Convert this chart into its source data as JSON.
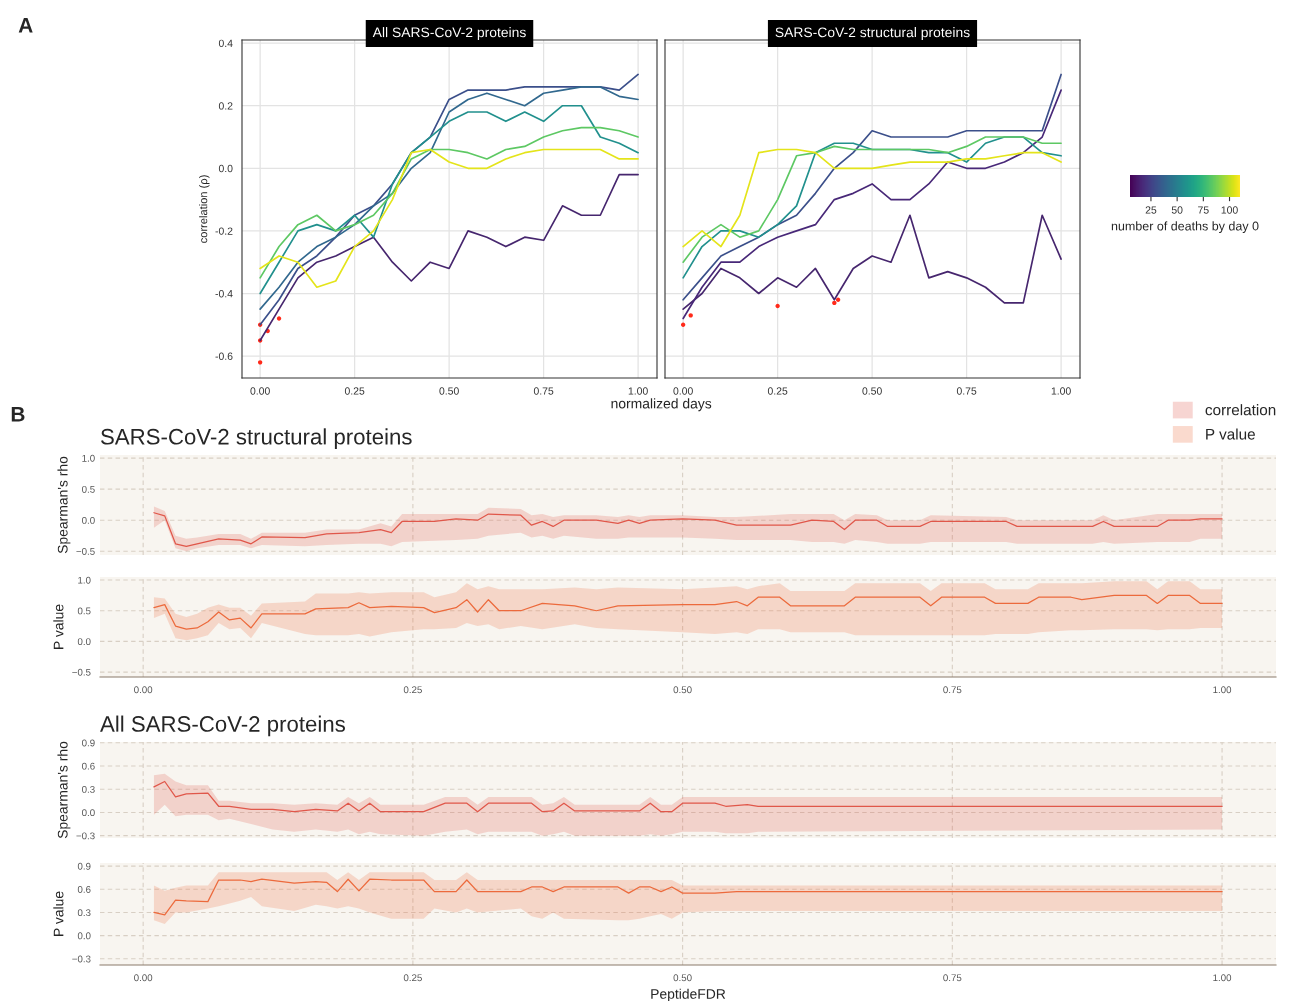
{
  "chart_data": [
    {
      "type": "line",
      "title": "All SARS-CoV-2 proteins",
      "xlabel": "normalized days",
      "ylabel": "correlation (ρ)",
      "annotations": [
        "A"
      ],
      "grid": true,
      "xlim": [
        -0.048,
        1.05
      ],
      "ylim": [
        -0.67,
        0.41
      ],
      "xticks": [
        {
          "value": 0,
          "label": "0.00"
        },
        {
          "value": 0.25,
          "label": "0.25"
        },
        {
          "value": 0.5,
          "label": "0.50"
        },
        {
          "value": 0.75,
          "label": "0.75"
        },
        {
          "value": 1,
          "label": "1.00"
        }
      ],
      "yticks": [
        {
          "value": -0.6,
          "label": "-0.6"
        },
        {
          "value": -0.4,
          "label": "-0.4"
        },
        {
          "value": -0.2,
          "label": "-0.2"
        },
        {
          "value": 0,
          "label": "0.0"
        },
        {
          "value": 0.2,
          "label": "0.2"
        },
        {
          "value": 0.4,
          "label": "0.4"
        }
      ],
      "x": [
        0,
        0.05,
        0.1,
        0.15,
        0.2,
        0.25,
        0.3,
        0.35,
        0.4,
        0.45,
        0.5,
        0.55,
        0.6,
        0.65,
        0.7,
        0.75,
        0.8,
        0.85,
        0.9,
        0.95,
        1.0
      ],
      "series": [
        {
          "color": "#46266e",
          "values": [
            -0.55,
            -0.45,
            -0.35,
            -0.3,
            -0.28,
            -0.25,
            -0.22,
            -0.3,
            -0.36,
            -0.3,
            -0.32,
            -0.2,
            -0.22,
            -0.25,
            -0.22,
            -0.23,
            -0.12,
            -0.15,
            -0.15,
            -0.02,
            -0.02
          ]
        },
        {
          "color": "#3b4f8a",
          "values": [
            -0.5,
            -0.42,
            -0.32,
            -0.28,
            -0.22,
            -0.15,
            -0.12,
            -0.05,
            0.05,
            0.1,
            0.22,
            0.25,
            0.25,
            0.25,
            0.26,
            0.26,
            0.26,
            0.26,
            0.26,
            0.25,
            0.3
          ]
        },
        {
          "color": "#31688e",
          "values": [
            -0.45,
            -0.38,
            -0.3,
            -0.25,
            -0.22,
            -0.18,
            -0.12,
            -0.08,
            0.0,
            0.05,
            0.18,
            0.22,
            0.24,
            0.22,
            0.2,
            0.24,
            0.25,
            0.26,
            0.26,
            0.23,
            0.22
          ]
        },
        {
          "color": "#21908d",
          "values": [
            -0.4,
            -0.3,
            -0.2,
            -0.18,
            -0.2,
            -0.15,
            -0.22,
            -0.05,
            0.05,
            0.1,
            0.15,
            0.18,
            0.18,
            0.15,
            0.18,
            0.15,
            0.2,
            0.2,
            0.1,
            0.08,
            0.05
          ]
        },
        {
          "color": "#5dc863",
          "values": [
            -0.35,
            -0.25,
            -0.18,
            -0.15,
            -0.2,
            -0.18,
            -0.15,
            -0.08,
            0.03,
            0.06,
            0.06,
            0.05,
            0.03,
            0.06,
            0.07,
            0.1,
            0.12,
            0.13,
            0.13,
            0.12,
            0.1
          ]
        },
        {
          "color": "#e4e41a",
          "values": [
            -0.32,
            -0.28,
            -0.3,
            -0.38,
            -0.36,
            -0.25,
            -0.2,
            -0.1,
            0.05,
            0.06,
            0.02,
            0.0,
            0.0,
            0.03,
            0.05,
            0.06,
            0.06,
            0.06,
            0.06,
            0.03,
            0.03
          ]
        },
        {
          "type": "scatter",
          "color": "#ff2a1a",
          "x": [
            0,
            0,
            0,
            0.02,
            0.05
          ],
          "values": [
            -0.55,
            -0.62,
            -0.5,
            -0.52,
            -0.48
          ]
        }
      ]
    },
    {
      "type": "line",
      "title": "SARS-CoV-2 structural proteins",
      "grid": true,
      "tick_labels": "x",
      "clabel": "number of deaths by day 0",
      "clim": [
        5,
        110
      ],
      "cticks": [
        25,
        50,
        75,
        100
      ],
      "xlim": [
        -0.048,
        1.05
      ],
      "ylim": [
        -0.67,
        0.41
      ],
      "xticks": [
        {
          "value": 0,
          "label": "0.00"
        },
        {
          "value": 0.25,
          "label": "0.25"
        },
        {
          "value": 0.5,
          "label": "0.50"
        },
        {
          "value": 0.75,
          "label": "0.75"
        },
        {
          "value": 1,
          "label": "1.00"
        }
      ],
      "yticks": [
        -0.6,
        -0.4,
        -0.2,
        0,
        0.2,
        0.4
      ],
      "x": [
        0,
        0.05,
        0.1,
        0.15,
        0.2,
        0.25,
        0.3,
        0.35,
        0.4,
        0.45,
        0.5,
        0.55,
        0.6,
        0.65,
        0.7,
        0.75,
        0.8,
        0.85,
        0.9,
        0.95,
        1.0
      ],
      "series": [
        {
          "color": "#46266e",
          "values": [
            -0.45,
            -0.4,
            -0.32,
            -0.35,
            -0.4,
            -0.35,
            -0.38,
            -0.32,
            -0.42,
            -0.32,
            -0.28,
            -0.3,
            -0.15,
            -0.35,
            -0.33,
            -0.35,
            -0.38,
            -0.43,
            -0.43,
            -0.15,
            -0.29
          ]
        },
        {
          "color": "#482878",
          "values": [
            -0.48,
            -0.38,
            -0.3,
            -0.3,
            -0.25,
            -0.22,
            -0.2,
            -0.18,
            -0.1,
            -0.08,
            -0.05,
            -0.1,
            -0.1,
            -0.05,
            0.02,
            0.0,
            0.0,
            0.02,
            0.05,
            0.1,
            0.25
          ]
        },
        {
          "color": "#3b4f8a",
          "values": [
            -0.42,
            -0.35,
            -0.28,
            -0.25,
            -0.22,
            -0.18,
            -0.15,
            -0.08,
            0.0,
            0.05,
            0.12,
            0.1,
            0.1,
            0.1,
            0.1,
            0.12,
            0.12,
            0.12,
            0.12,
            0.12,
            0.3
          ]
        },
        {
          "color": "#21908d",
          "values": [
            -0.35,
            -0.25,
            -0.2,
            -0.2,
            -0.22,
            -0.18,
            -0.12,
            0.05,
            0.08,
            0.08,
            0.06,
            0.06,
            0.06,
            0.05,
            0.05,
            0.02,
            0.08,
            0.1,
            0.1,
            0.05,
            0.04
          ]
        },
        {
          "color": "#5dc863",
          "values": [
            -0.3,
            -0.22,
            -0.18,
            -0.22,
            -0.2,
            -0.1,
            0.04,
            0.05,
            0.07,
            0.06,
            0.06,
            0.06,
            0.06,
            0.06,
            0.05,
            0.07,
            0.1,
            0.1,
            0.1,
            0.08,
            0.08
          ]
        },
        {
          "color": "#e4e41a",
          "values": [
            -0.25,
            -0.2,
            -0.25,
            -0.15,
            0.05,
            0.06,
            0.06,
            0.05,
            0.0,
            0.0,
            0.0,
            0.01,
            0.02,
            0.02,
            0.02,
            0.03,
            0.03,
            0.04,
            0.05,
            0.05,
            0.02
          ]
        },
        {
          "type": "scatter",
          "color": "#ff2a1a",
          "x": [
            0,
            0.02,
            0.25,
            0.4,
            0.41
          ],
          "values": [
            -0.5,
            -0.47,
            -0.44,
            -0.43,
            -0.42
          ]
        }
      ]
    },
    {
      "type": "line",
      "title": "SARS-CoV-2 structural proteins",
      "ylabel": "Spearman's rho",
      "annotations": [
        "B"
      ],
      "grid": true,
      "legend": "top right",
      "tick_labels": "y",
      "xlim": [
        -0.04,
        1.05
      ],
      "ylim": [
        -0.56,
        1.05
      ],
      "xticks": [
        0,
        0.25,
        0.5,
        0.75,
        1
      ],
      "yticks": [
        {
          "value": -0.5,
          "label": "−0.5"
        },
        {
          "value": 0,
          "label": "0.0"
        },
        {
          "value": 0.5,
          "label": "0.5"
        },
        {
          "value": 1,
          "label": "1.0"
        }
      ],
      "series": [
        {
          "name": "correlation",
          "color": "#e0574a",
          "x": [
            0.01,
            0.02,
            0.03,
            0.04,
            0.05,
            0.07,
            0.09,
            0.1,
            0.11,
            0.15,
            0.17,
            0.2,
            0.22,
            0.23,
            0.24,
            0.27,
            0.29,
            0.31,
            0.32,
            0.35,
            0.36,
            0.37,
            0.38,
            0.39,
            0.42,
            0.44,
            0.45,
            0.46,
            0.47,
            0.5,
            0.53,
            0.55,
            0.6,
            0.62,
            0.64,
            0.65,
            0.66,
            0.68,
            0.69,
            0.72,
            0.73,
            0.8,
            0.81,
            0.88,
            0.89,
            0.9,
            0.94,
            0.95,
            0.97,
            0.98,
            1.0
          ],
          "values": [
            0.12,
            0.07,
            -0.38,
            -0.42,
            -0.38,
            -0.3,
            -0.32,
            -0.38,
            -0.27,
            -0.28,
            -0.22,
            -0.2,
            -0.15,
            -0.2,
            -0.02,
            -0.02,
            0.02,
            0.0,
            0.1,
            0.08,
            -0.08,
            -0.02,
            -0.1,
            0.0,
            0.0,
            -0.05,
            0.0,
            -0.05,
            0.0,
            0.02,
            0.0,
            -0.08,
            -0.08,
            0.0,
            -0.02,
            -0.15,
            0.0,
            0.0,
            -0.1,
            -0.1,
            -0.02,
            -0.02,
            -0.1,
            -0.1,
            -0.02,
            -0.1,
            -0.1,
            0.0,
            0.0,
            0.02,
            0.02
          ],
          "lower": [
            -0.12,
            0.0,
            -0.45,
            -0.5,
            -0.45,
            -0.4,
            -0.4,
            -0.45,
            -0.4,
            -0.42,
            -0.4,
            -0.38,
            -0.38,
            -0.42,
            -0.35,
            -0.33,
            -0.32,
            -0.3,
            -0.25,
            -0.2,
            -0.28,
            -0.25,
            -0.3,
            -0.25,
            -0.3,
            -0.3,
            -0.28,
            -0.28,
            -0.28,
            -0.28,
            -0.3,
            -0.32,
            -0.32,
            -0.35,
            -0.35,
            -0.38,
            -0.32,
            -0.35,
            -0.38,
            -0.38,
            -0.35,
            -0.35,
            -0.38,
            -0.38,
            -0.35,
            -0.38,
            -0.35,
            -0.35,
            -0.35,
            -0.3,
            -0.3
          ],
          "upper": [
            0.22,
            0.15,
            -0.25,
            -0.3,
            -0.28,
            -0.22,
            -0.22,
            -0.3,
            -0.2,
            -0.2,
            -0.15,
            -0.15,
            -0.05,
            -0.1,
            0.1,
            0.1,
            0.1,
            0.1,
            0.2,
            0.18,
            0.08,
            0.1,
            0.05,
            0.08,
            0.08,
            0.05,
            0.08,
            0.05,
            0.08,
            0.08,
            0.05,
            0.05,
            0.1,
            0.1,
            0.1,
            0.0,
            0.1,
            0.08,
            0.0,
            0.0,
            0.08,
            0.05,
            0.0,
            0.0,
            0.08,
            0.0,
            0.1,
            0.1,
            0.1,
            0.1,
            0.1
          ]
        }
      ]
    },
    {
      "type": "line",
      "ylabel": "P value",
      "grid": true,
      "xlim": [
        -0.04,
        1.05
      ],
      "ylim": [
        -0.58,
        1.05
      ],
      "xticks": [
        {
          "value": 0,
          "label": "0.00"
        },
        {
          "value": 0.25,
          "label": "0.25"
        },
        {
          "value": 0.5,
          "label": "0.50"
        },
        {
          "value": 0.75,
          "label": "0.75"
        },
        {
          "value": 1,
          "label": "1.00"
        }
      ],
      "yticks": [
        {
          "value": -0.5,
          "label": "−0.5"
        },
        {
          "value": 0,
          "label": "0.0"
        },
        {
          "value": 0.5,
          "label": "0.5"
        },
        {
          "value": 1,
          "label": "1.0"
        }
      ],
      "series": [
        {
          "name": "P value",
          "color": "#ec6a3c",
          "x": [
            0.01,
            0.02,
            0.03,
            0.04,
            0.05,
            0.06,
            0.07,
            0.08,
            0.09,
            0.1,
            0.11,
            0.15,
            0.16,
            0.19,
            0.2,
            0.21,
            0.23,
            0.26,
            0.27,
            0.29,
            0.3,
            0.31,
            0.32,
            0.33,
            0.35,
            0.37,
            0.4,
            0.42,
            0.44,
            0.5,
            0.53,
            0.55,
            0.56,
            0.57,
            0.59,
            0.6,
            0.65,
            0.66,
            0.72,
            0.73,
            0.74,
            0.78,
            0.79,
            0.82,
            0.83,
            0.86,
            0.87,
            0.9,
            0.93,
            0.94,
            0.95,
            0.97,
            0.98,
            1.0
          ],
          "values": [
            0.55,
            0.6,
            0.25,
            0.2,
            0.22,
            0.32,
            0.48,
            0.35,
            0.38,
            0.22,
            0.45,
            0.45,
            0.53,
            0.55,
            0.63,
            0.55,
            0.57,
            0.55,
            0.47,
            0.55,
            0.68,
            0.48,
            0.68,
            0.5,
            0.5,
            0.62,
            0.58,
            0.5,
            0.58,
            0.6,
            0.6,
            0.65,
            0.58,
            0.72,
            0.72,
            0.58,
            0.58,
            0.72,
            0.72,
            0.58,
            0.72,
            0.72,
            0.62,
            0.62,
            0.72,
            0.72,
            0.68,
            0.75,
            0.75,
            0.62,
            0.75,
            0.75,
            0.62,
            0.62
          ],
          "lower": [
            0.38,
            0.45,
            0.05,
            0.02,
            0.05,
            0.1,
            0.3,
            0.2,
            0.22,
            0.05,
            0.3,
            0.12,
            0.1,
            0.1,
            0.12,
            0.08,
            0.15,
            0.2,
            0.2,
            0.22,
            0.3,
            0.25,
            0.28,
            0.2,
            0.25,
            0.2,
            0.28,
            0.22,
            0.2,
            0.15,
            0.12,
            0.15,
            0.12,
            0.2,
            0.2,
            0.15,
            0.15,
            0.1,
            0.1,
            0.1,
            0.1,
            0.1,
            0.12,
            0.12,
            0.15,
            0.18,
            0.18,
            0.2,
            0.2,
            0.18,
            0.2,
            0.2,
            0.22,
            0.22
          ],
          "upper": [
            0.72,
            0.7,
            0.45,
            0.4,
            0.45,
            0.55,
            0.6,
            0.55,
            0.55,
            0.42,
            0.62,
            0.65,
            0.78,
            0.78,
            0.8,
            0.78,
            0.8,
            0.8,
            0.72,
            0.8,
            0.95,
            0.85,
            0.9,
            0.85,
            0.85,
            0.85,
            0.88,
            0.85,
            0.88,
            0.85,
            0.88,
            0.9,
            0.85,
            0.9,
            0.95,
            0.82,
            0.82,
            0.95,
            0.95,
            0.82,
            0.95,
            0.95,
            0.85,
            0.85,
            0.95,
            0.95,
            0.95,
            0.98,
            0.98,
            0.85,
            0.98,
            0.98,
            0.85,
            0.85
          ]
        }
      ]
    },
    {
      "type": "line",
      "title": "All SARS-CoV-2 proteins",
      "ylabel": "Spearman's rho",
      "grid": true,
      "tick_labels": "y",
      "xlim": [
        -0.04,
        1.05
      ],
      "ylim": [
        -0.33,
        0.91
      ],
      "xticks": [
        0,
        0.25,
        0.5,
        0.75,
        1
      ],
      "yticks": [
        {
          "value": -0.3,
          "label": "−0.3"
        },
        {
          "value": 0,
          "label": "0.0"
        },
        {
          "value": 0.3,
          "label": "0.3"
        },
        {
          "value": 0.6,
          "label": "0.6"
        },
        {
          "value": 0.9,
          "label": "0.9"
        }
      ],
      "series": [
        {
          "color": "#e0574a",
          "x": [
            0.01,
            0.02,
            0.03,
            0.04,
            0.06,
            0.07,
            0.08,
            0.1,
            0.12,
            0.14,
            0.16,
            0.18,
            0.19,
            0.2,
            0.21,
            0.22,
            0.26,
            0.28,
            0.3,
            0.31,
            0.32,
            0.36,
            0.37,
            0.38,
            0.39,
            0.4,
            0.44,
            0.46,
            0.47,
            0.48,
            0.49,
            0.5,
            0.53,
            0.54,
            0.56,
            0.57,
            1.0
          ],
          "values": [
            0.33,
            0.4,
            0.2,
            0.24,
            0.25,
            0.08,
            0.08,
            0.04,
            0.04,
            0.01,
            0.04,
            0.02,
            0.12,
            0.02,
            0.12,
            0.01,
            0.01,
            0.12,
            0.12,
            0.01,
            0.12,
            0.12,
            0.01,
            0.02,
            0.12,
            0.02,
            0.02,
            0.02,
            0.12,
            0.01,
            0.01,
            0.12,
            0.12,
            0.08,
            0.1,
            0.08,
            0.08
          ],
          "lower": [
            -0.03,
            0.1,
            -0.05,
            -0.03,
            -0.03,
            -0.1,
            -0.08,
            -0.15,
            -0.22,
            -0.25,
            -0.22,
            -0.25,
            -0.22,
            -0.28,
            -0.25,
            -0.28,
            -0.3,
            -0.25,
            -0.22,
            -0.28,
            -0.25,
            -0.25,
            -0.3,
            -0.28,
            -0.25,
            -0.3,
            -0.3,
            -0.3,
            -0.28,
            -0.3,
            -0.28,
            -0.25,
            -0.25,
            -0.27,
            -0.27,
            -0.25,
            -0.22
          ],
          "upper": [
            0.48,
            0.5,
            0.4,
            0.35,
            0.35,
            0.15,
            0.15,
            0.12,
            0.12,
            0.1,
            0.12,
            0.1,
            0.2,
            0.12,
            0.2,
            0.1,
            0.1,
            0.2,
            0.2,
            0.1,
            0.2,
            0.2,
            0.1,
            0.12,
            0.2,
            0.1,
            0.1,
            0.1,
            0.2,
            0.1,
            0.1,
            0.2,
            0.2,
            0.2,
            0.2,
            0.2,
            0.2
          ]
        }
      ]
    },
    {
      "type": "line",
      "ylabel": "P value",
      "xlabel": "PeptideFDR",
      "grid": true,
      "xlim": [
        -0.04,
        1.05
      ],
      "ylim": [
        -0.38,
        0.94
      ],
      "xticks": [
        {
          "value": 0,
          "label": "0.00"
        },
        {
          "value": 0.25,
          "label": "0.25"
        },
        {
          "value": 0.5,
          "label": "0.50"
        },
        {
          "value": 0.75,
          "label": "0.75"
        },
        {
          "value": 1,
          "label": "1.00"
        }
      ],
      "yticks": [
        {
          "value": -0.3,
          "label": "−0.3"
        },
        {
          "value": 0,
          "label": "0.0"
        },
        {
          "value": 0.3,
          "label": "0.3"
        },
        {
          "value": 0.6,
          "label": "0.6"
        },
        {
          "value": 0.9,
          "label": "0.9"
        }
      ],
      "series": [
        {
          "color": "#ec6a3c",
          "x": [
            0.01,
            0.02,
            0.03,
            0.04,
            0.06,
            0.07,
            0.09,
            0.1,
            0.11,
            0.14,
            0.16,
            0.17,
            0.18,
            0.19,
            0.2,
            0.21,
            0.23,
            0.26,
            0.27,
            0.29,
            0.3,
            0.31,
            0.35,
            0.36,
            0.37,
            0.38,
            0.39,
            0.44,
            0.45,
            0.46,
            0.47,
            0.48,
            0.49,
            0.5,
            0.53,
            0.55,
            1.0
          ],
          "values": [
            0.3,
            0.27,
            0.46,
            0.45,
            0.44,
            0.72,
            0.72,
            0.7,
            0.73,
            0.68,
            0.7,
            0.69,
            0.57,
            0.73,
            0.58,
            0.73,
            0.72,
            0.72,
            0.57,
            0.57,
            0.72,
            0.57,
            0.57,
            0.63,
            0.63,
            0.57,
            0.63,
            0.63,
            0.55,
            0.63,
            0.63,
            0.57,
            0.63,
            0.55,
            0.55,
            0.57,
            0.57
          ],
          "lower": [
            0.2,
            0.15,
            0.3,
            0.3,
            0.35,
            0.38,
            0.45,
            0.5,
            0.38,
            0.32,
            0.4,
            0.38,
            0.35,
            0.38,
            0.35,
            0.3,
            0.22,
            0.22,
            0.35,
            0.3,
            0.35,
            0.3,
            0.35,
            0.25,
            0.22,
            0.3,
            0.22,
            0.2,
            0.2,
            0.22,
            0.25,
            0.28,
            0.22,
            0.3,
            0.32,
            0.32,
            0.32
          ],
          "upper": [
            0.65,
            0.58,
            0.62,
            0.65,
            0.65,
            0.82,
            0.82,
            0.82,
            0.82,
            0.82,
            0.82,
            0.82,
            0.72,
            0.82,
            0.72,
            0.82,
            0.82,
            0.82,
            0.72,
            0.72,
            0.82,
            0.72,
            0.72,
            0.72,
            0.72,
            0.72,
            0.72,
            0.72,
            0.72,
            0.72,
            0.72,
            0.72,
            0.72,
            0.65,
            0.65,
            0.65,
            0.65
          ]
        }
      ]
    }
  ]
}
